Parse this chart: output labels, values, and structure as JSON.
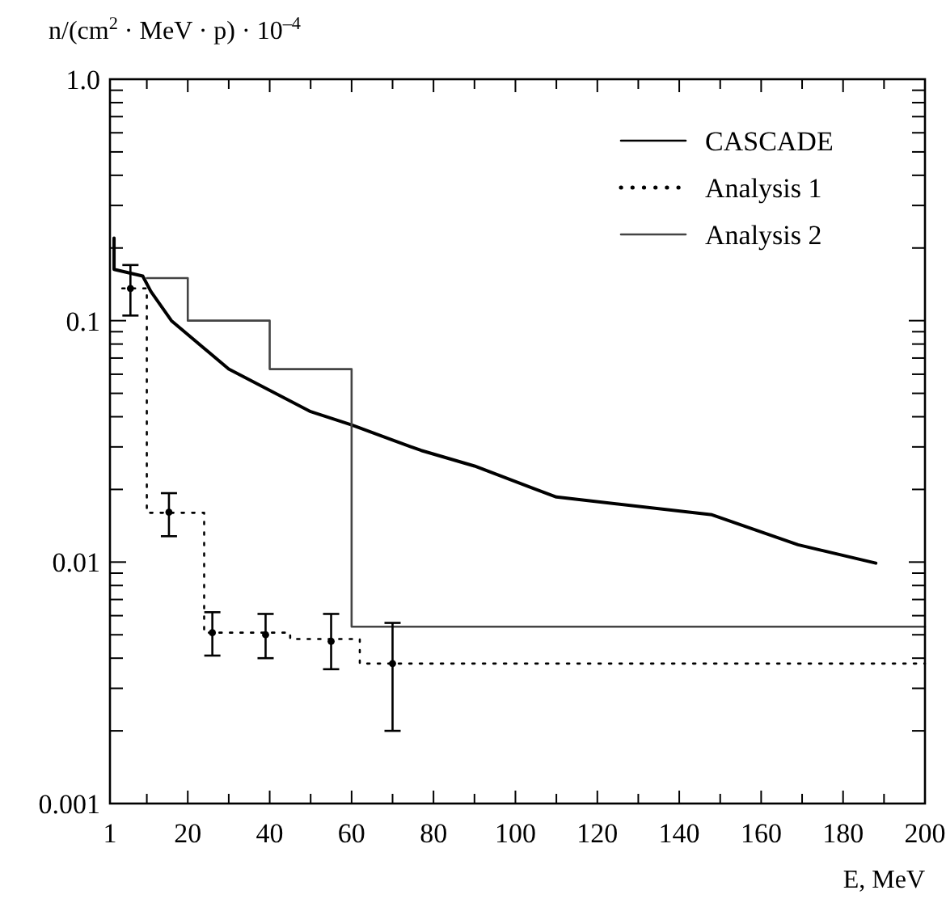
{
  "chart_data": {
    "type": "line",
    "ylabel": "n/(cm$^{2}$ · MeV · p) · 10$^{–4}$",
    "xlabel": "E, MeV",
    "log": "y",
    "legend": "top right",
    "xlim": [
      1,
      200
    ],
    "ylim": [
      0.001,
      1
    ],
    "xticks": [
      1,
      {
        "value": 10,
        "label": null
      },
      20,
      {
        "value": 30,
        "label": null
      },
      40,
      {
        "value": 50,
        "label": null
      },
      60,
      {
        "value": 70,
        "label": null
      },
      80,
      {
        "value": 90,
        "label": null
      },
      100,
      {
        "value": 110,
        "label": null
      },
      120,
      {
        "value": 130,
        "label": null
      },
      140,
      {
        "value": 150,
        "label": null
      },
      160,
      {
        "value": 170,
        "label": null
      },
      180,
      {
        "value": 190,
        "label": null
      },
      200
    ],
    "yticks": [
      {
        "value": 0.001,
        "label": "0.001"
      },
      {
        "value": 0.002,
        "label": null
      },
      {
        "value": 0.003,
        "label": null
      },
      {
        "value": 0.004,
        "label": null
      },
      {
        "value": 0.005,
        "label": null
      },
      {
        "value": 0.006,
        "label": null
      },
      {
        "value": 0.007,
        "label": null
      },
      {
        "value": 0.008,
        "label": null
      },
      {
        "value": 0.009,
        "label": null
      },
      {
        "value": 0.01,
        "label": "0.01"
      },
      {
        "value": 0.02,
        "label": null
      },
      {
        "value": 0.03,
        "label": null
      },
      {
        "value": 0.04,
        "label": null
      },
      {
        "value": 0.05,
        "label": null
      },
      {
        "value": 0.06,
        "label": null
      },
      {
        "value": 0.07,
        "label": null
      },
      {
        "value": 0.08,
        "label": null
      },
      {
        "value": 0.09,
        "label": null
      },
      {
        "value": 0.1,
        "label": "0.1"
      },
      {
        "value": 0.2,
        "label": null
      },
      {
        "value": 0.3,
        "label": null
      },
      {
        "value": 0.4,
        "label": null
      },
      {
        "value": 0.5,
        "label": null
      },
      {
        "value": 0.6,
        "label": null
      },
      {
        "value": 0.7,
        "label": null
      },
      {
        "value": 0.8,
        "label": null
      },
      {
        "value": 0.9,
        "label": null
      },
      {
        "value": 1,
        "label": "1.0"
      }
    ],
    "series": [
      {
        "name": "CASCADE",
        "color": "#000000",
        "line_style": "solid",
        "x": [
          2,
          2,
          9,
          11,
          16,
          30,
          50,
          60,
          70,
          77,
          90,
          105,
          110,
          148,
          169,
          188
        ],
        "values": [
          0.22,
          0.163,
          0.153,
          0.132,
          0.1,
          0.063,
          0.042,
          0.037,
          0.032,
          0.029,
          0.025,
          0.02,
          0.0186,
          0.0157,
          0.0118,
          0.0099
        ]
      },
      {
        "name": "Analysis 1",
        "type": "step",
        "color": "#000000",
        "line_style": "dotted",
        "x": [
          4,
          10,
          24,
          45,
          62,
          200
        ],
        "values": [
          0.136,
          0.016,
          0.0051,
          0.0048,
          0.0038,
          0.0038
        ]
      },
      {
        "name": "Analysis 2",
        "type": "step",
        "color": "#444444",
        "line_style": "solid",
        "x": [
          10,
          20,
          40,
          60,
          200
        ],
        "values": [
          0.15,
          0.1,
          0.063,
          0.0054,
          0.0054
        ]
      },
      {
        "type": "scatter",
        "color": "#000000",
        "marker": "circle",
        "x": [
          6,
          15.4,
          26,
          39,
          55,
          70
        ],
        "values": [
          0.136,
          0.0161,
          0.0051,
          0.005,
          0.0047,
          0.0038
        ],
        "errors": [
          [
            0.105,
            0.17
          ],
          [
            0.0128,
            0.0193
          ],
          [
            0.0041,
            0.0062
          ],
          [
            0.004,
            0.0061
          ],
          [
            0.0036,
            0.0061
          ],
          [
            0.002,
            0.0056
          ]
        ]
      }
    ]
  }
}
